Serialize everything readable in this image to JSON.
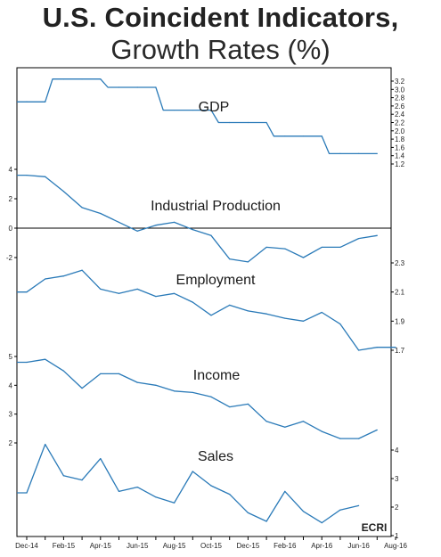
{
  "title": "U.S. Coincident Indicators,",
  "subtitle": "Growth Rates (%)",
  "logo": "ECRI",
  "chart_data": {
    "type": "line",
    "x": [
      "Dec-14",
      "Jan-15",
      "Feb-15",
      "Mar-15",
      "Apr-15",
      "May-15",
      "Jun-15",
      "Jul-15",
      "Aug-15",
      "Sep-15",
      "Oct-15",
      "Nov-15",
      "Dec-15",
      "Jan-16",
      "Feb-16",
      "Mar-16",
      "Apr-16",
      "May-16",
      "Jun-16",
      "Jul-16",
      "Aug-16"
    ],
    "x_tick_labels": [
      "Dec-14",
      "Feb-15",
      "Apr-15",
      "Jun-15",
      "Aug-15",
      "Oct-15",
      "Dec-15",
      "Feb-16",
      "Apr-16",
      "Jun-16",
      "Aug-16"
    ],
    "color": "#2a7ab8",
    "series": [
      {
        "name": "GDP",
        "axis": "right",
        "y_ticks": [
          "3.2",
          "3.0",
          "2.8",
          "2.6",
          "2.4",
          "2.2",
          "2.0",
          "1.8",
          "1.6",
          "1.4",
          "1.2"
        ],
        "values": [
          2.7,
          2.7,
          3.25,
          3.25,
          3.25,
          3.05,
          3.05,
          3.05,
          2.5,
          2.5,
          2.5,
          2.2,
          2.2,
          2.2,
          1.87,
          1.87,
          1.87,
          1.45,
          1.45,
          1.45,
          null
        ]
      },
      {
        "name": "Industrial Production",
        "axis": "left",
        "y_ticks": [
          "4",
          "2",
          "0",
          "-2"
        ],
        "values": [
          3.6,
          3.5,
          2.5,
          1.4,
          1.0,
          0.4,
          -0.2,
          0.2,
          0.4,
          -0.1,
          -0.5,
          -2.1,
          -2.3,
          -1.3,
          -1.4,
          -2.0,
          -1.3,
          -1.3,
          -0.7,
          -0.5,
          null
        ]
      },
      {
        "name": "Employment",
        "axis": "right",
        "y_ticks": [
          "2.3",
          "2.1",
          "1.9",
          "1.7"
        ],
        "values": [
          2.1,
          2.19,
          2.21,
          2.25,
          2.12,
          2.09,
          2.12,
          2.07,
          2.09,
          2.03,
          1.94,
          2.01,
          1.97,
          1.95,
          1.92,
          1.9,
          1.96,
          1.88,
          1.7,
          1.72,
          1.72
        ]
      },
      {
        "name": "Income",
        "axis": "left",
        "y_ticks": [
          "5",
          "4",
          "3",
          "2"
        ],
        "values": [
          4.8,
          4.9,
          4.5,
          3.9,
          4.4,
          4.4,
          4.1,
          4.0,
          3.8,
          3.75,
          3.6,
          3.25,
          3.35,
          2.75,
          2.55,
          2.75,
          2.4,
          2.15,
          2.15,
          2.45,
          null
        ]
      },
      {
        "name": "Sales",
        "axis": "right",
        "y_ticks": [
          "4",
          "3",
          "2",
          "1"
        ],
        "values": [
          2.5,
          4.2,
          3.1,
          2.95,
          3.7,
          2.55,
          2.7,
          2.35,
          2.15,
          3.25,
          2.75,
          2.45,
          1.8,
          1.5,
          2.55,
          1.85,
          1.45,
          1.9,
          2.05,
          null,
          null
        ]
      }
    ]
  }
}
